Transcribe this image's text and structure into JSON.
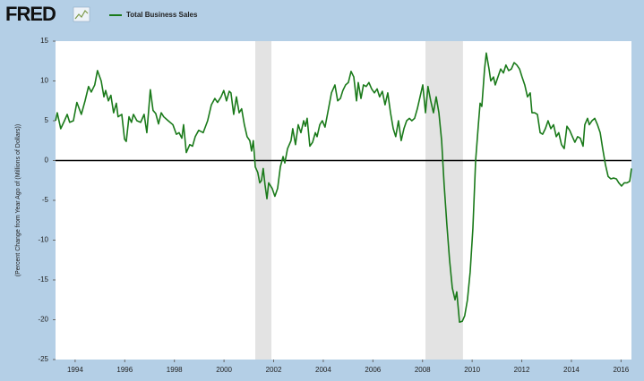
{
  "chart_data": {
    "type": "line",
    "brand": "FRED",
    "ylabel": "(Percent Change from Year Ago of (Millions of Dollars))",
    "xlim": [
      1993.21,
      2016.42
    ],
    "xticks": [
      1994,
      1996,
      1998,
      2000,
      2002,
      2004,
      2006,
      2008,
      2010,
      2012,
      2014,
      2016
    ],
    "ylim": [
      -25,
      15
    ],
    "yticks": [
      -25,
      -20,
      -15,
      -10,
      -5,
      0,
      5,
      10,
      15
    ],
    "zero_line": true,
    "recessions": [
      [
        2001.26,
        2001.91
      ],
      [
        2008.12,
        2009.63
      ]
    ],
    "recession_color": "#e3e3e3",
    "legend": "top-left",
    "x": [
      1993.21,
      1993.28,
      1993.42,
      1993.57,
      1993.68,
      1993.78,
      1993.93,
      1994.07,
      1994.25,
      1994.4,
      1994.54,
      1994.65,
      1994.79,
      1994.9,
      1995.05,
      1995.16,
      1995.23,
      1995.34,
      1995.44,
      1995.55,
      1995.66,
      1995.73,
      1995.88,
      1995.99,
      1996.06,
      1996.17,
      1996.27,
      1996.35,
      1996.49,
      1996.64,
      1996.78,
      1996.89,
      1997.03,
      1997.14,
      1997.25,
      1997.36,
      1997.47,
      1997.57,
      1997.75,
      1997.94,
      1998.08,
      1998.19,
      1998.3,
      1998.37,
      1998.48,
      1998.62,
      1998.73,
      1998.84,
      1998.98,
      1999.16,
      1999.34,
      1999.49,
      1999.63,
      1999.74,
      1999.88,
      1999.99,
      2000.1,
      2000.21,
      2000.28,
      2000.39,
      2000.5,
      2000.61,
      2000.71,
      2000.82,
      2000.93,
      2001.04,
      2001.11,
      2001.18,
      2001.26,
      2001.36,
      2001.44,
      2001.51,
      2001.58,
      2001.65,
      2001.73,
      2001.8,
      2001.94,
      2002.05,
      2002.16,
      2002.27,
      2002.38,
      2002.45,
      2002.56,
      2002.7,
      2002.77,
      2002.88,
      2002.99,
      2003.1,
      2003.21,
      2003.28,
      2003.35,
      2003.46,
      2003.57,
      2003.68,
      2003.75,
      2003.86,
      2003.96,
      2004.07,
      2004.18,
      2004.33,
      2004.47,
      2004.58,
      2004.69,
      2004.79,
      2004.9,
      2005.01,
      2005.12,
      2005.23,
      2005.34,
      2005.41,
      2005.52,
      2005.62,
      2005.73,
      2005.84,
      2005.95,
      2006.06,
      2006.17,
      2006.27,
      2006.38,
      2006.49,
      2006.6,
      2006.71,
      2006.82,
      2006.92,
      2007.03,
      2007.14,
      2007.25,
      2007.36,
      2007.47,
      2007.57,
      2007.68,
      2007.79,
      2007.9,
      2008.01,
      2008.12,
      2008.22,
      2008.33,
      2008.44,
      2008.55,
      2008.66,
      2008.77,
      2008.87,
      2008.98,
      2009.09,
      2009.2,
      2009.31,
      2009.38,
      2009.49,
      2009.6,
      2009.7,
      2009.81,
      2009.92,
      2010.03,
      2010.14,
      2010.25,
      2010.32,
      2010.39,
      2010.5,
      2010.57,
      2010.68,
      2010.75,
      2010.86,
      2010.93,
      2011.04,
      2011.15,
      2011.26,
      2011.36,
      2011.47,
      2011.58,
      2011.69,
      2011.8,
      2011.91,
      2012.01,
      2012.12,
      2012.23,
      2012.34,
      2012.41,
      2012.52,
      2012.63,
      2012.74,
      2012.84,
      2012.95,
      2013.06,
      2013.17,
      2013.28,
      2013.39,
      2013.49,
      2013.6,
      2013.71,
      2013.82,
      2013.93,
      2014.04,
      2014.14,
      2014.25,
      2014.36,
      2014.47,
      2014.54,
      2014.65,
      2014.72,
      2014.83,
      2014.94,
      2015.05,
      2015.16,
      2015.26,
      2015.37,
      2015.48,
      2015.59,
      2015.7,
      2015.81,
      2015.91,
      2016.02,
      2016.13,
      2016.24,
      2016.35,
      2016.42
    ],
    "series": [
      {
        "name": "Total Business Sales",
        "color": "#1a7a1a",
        "values": [
          5.0,
          6.0,
          4.0,
          5.0,
          5.8,
          4.8,
          5.0,
          7.3,
          5.8,
          7.5,
          9.3,
          8.6,
          9.5,
          11.3,
          10.0,
          8.0,
          8.8,
          7.5,
          8.2,
          6.0,
          7.2,
          5.5,
          5.8,
          2.7,
          2.4,
          5.5,
          4.8,
          5.8,
          5.0,
          4.8,
          5.8,
          3.5,
          8.9,
          6.3,
          5.9,
          4.6,
          6.0,
          5.5,
          5.0,
          4.5,
          3.3,
          3.5,
          2.8,
          4.5,
          1.0,
          2.0,
          1.8,
          3.0,
          3.8,
          3.5,
          5.0,
          7.0,
          7.8,
          7.3,
          8.0,
          8.8,
          7.5,
          8.7,
          8.5,
          5.8,
          8.0,
          6.0,
          6.5,
          4.5,
          3.0,
          2.5,
          1.2,
          2.5,
          -0.8,
          -1.5,
          -2.8,
          -2.5,
          -1.0,
          -3.0,
          -4.8,
          -2.8,
          -3.5,
          -4.5,
          -3.5,
          -0.8,
          0.5,
          -0.3,
          1.5,
          2.5,
          4.0,
          2.0,
          4.5,
          3.5,
          5.0,
          4.3,
          5.3,
          1.8,
          2.3,
          3.5,
          3.0,
          4.5,
          5.0,
          4.2,
          6.0,
          8.5,
          9.5,
          7.5,
          7.8,
          8.8,
          9.5,
          9.8,
          11.2,
          10.5,
          7.5,
          9.8,
          7.8,
          9.5,
          9.3,
          9.8,
          9.0,
          8.5,
          9.0,
          8.0,
          8.7,
          7.0,
          8.5,
          6.0,
          4.0,
          3.0,
          5.0,
          2.5,
          4.0,
          5.0,
          5.3,
          5.0,
          5.3,
          6.5,
          8.0,
          9.5,
          6.0,
          9.3,
          7.5,
          6.0,
          8.0,
          6.0,
          2.5,
          -3.0,
          -8.0,
          -12.5,
          -16.0,
          -17.5,
          -16.5,
          -20.3,
          -20.2,
          -19.5,
          -17.5,
          -14.0,
          -8.5,
          0.0,
          4.5,
          7.2,
          6.8,
          11.5,
          13.5,
          11.5,
          10.0,
          10.5,
          9.5,
          10.5,
          11.5,
          11.0,
          12.0,
          11.3,
          11.5,
          12.3,
          12.0,
          11.5,
          10.5,
          9.5,
          8.0,
          8.5,
          6.0,
          6.0,
          5.8,
          3.5,
          3.3,
          4.0,
          5.0,
          4.0,
          4.5,
          3.0,
          3.5,
          2.0,
          1.5,
          4.3,
          3.8,
          3.0,
          2.3,
          3.0,
          2.8,
          1.8,
          4.5,
          5.3,
          4.5,
          5.0,
          5.3,
          4.5,
          3.5,
          1.5,
          -0.5,
          -2.0,
          -2.3,
          -2.2,
          -2.3,
          -2.8,
          -3.2,
          -2.8,
          -2.8,
          -2.6,
          -1.0
        ]
      }
    ]
  }
}
